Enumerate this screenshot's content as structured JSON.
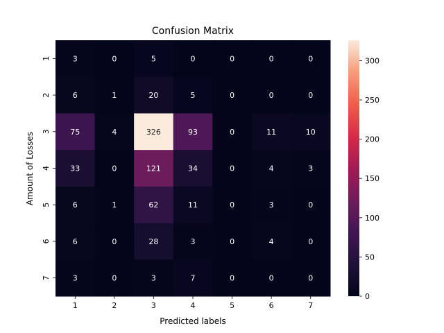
{
  "chart_data": {
    "type": "heatmap",
    "title": "Confusion Matrix",
    "xlabel": "Predicted labels",
    "ylabel": "Amount of Losses",
    "x_categories": [
      "1",
      "2",
      "3",
      "4",
      "5",
      "6",
      "7"
    ],
    "y_categories": [
      "1",
      "2",
      "3",
      "4",
      "5",
      "6",
      "7"
    ],
    "values": [
      [
        3,
        0,
        5,
        0,
        0,
        0,
        0
      ],
      [
        6,
        1,
        20,
        5,
        0,
        0,
        0
      ],
      [
        75,
        4,
        326,
        93,
        0,
        11,
        10
      ],
      [
        33,
        0,
        121,
        34,
        0,
        4,
        3
      ],
      [
        6,
        1,
        62,
        11,
        0,
        3,
        0
      ],
      [
        6,
        0,
        28,
        3,
        0,
        4,
        0
      ],
      [
        3,
        0,
        3,
        7,
        0,
        0,
        0
      ]
    ],
    "colorbar": {
      "min": 0,
      "max": 326,
      "ticks": [
        0,
        50,
        100,
        150,
        200,
        250,
        300
      ],
      "colormap": "rocket"
    },
    "annotations": true,
    "grid": false,
    "legend": "colorbar-right"
  }
}
